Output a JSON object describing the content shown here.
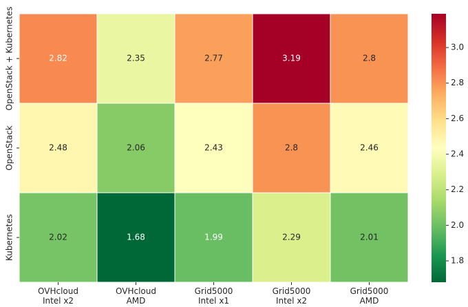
{
  "chart_data": {
    "type": "heatmap",
    "x_categories": [
      "OVHcloud\nIntel x2",
      "OVHcloud\nAMD",
      "Grid5000\nIntel x1",
      "Grid5000\nIntel x2",
      "Grid5000\nAMD"
    ],
    "y_categories": [
      "OpenStack + Kubernetes",
      "OpenStack",
      "Kubernetes"
    ],
    "values": [
      [
        2.82,
        2.35,
        2.77,
        3.19,
        2.8
      ],
      [
        2.48,
        2.06,
        2.43,
        2.8,
        2.46
      ],
      [
        2.02,
        1.68,
        1.99,
        2.29,
        2.01
      ]
    ],
    "label_colors": [
      [
        "#ffffff",
        "#262626",
        "#262626",
        "#ffffff",
        "#262626"
      ],
      [
        "#262626",
        "#262626",
        "#262626",
        "#262626",
        "#262626"
      ],
      [
        "#262626",
        "#ffffff",
        "#ffffff",
        "#262626",
        "#262626"
      ]
    ],
    "colormap": "RdYlGn_r",
    "clim": [
      1.68,
      3.19
    ],
    "cticks": [
      1.8,
      {
        "value": 2.0,
        "label": "2.0"
      },
      2.2,
      2.4,
      2.6,
      2.8,
      {
        "value": 3.0,
        "label": "3.0"
      }
    ]
  }
}
